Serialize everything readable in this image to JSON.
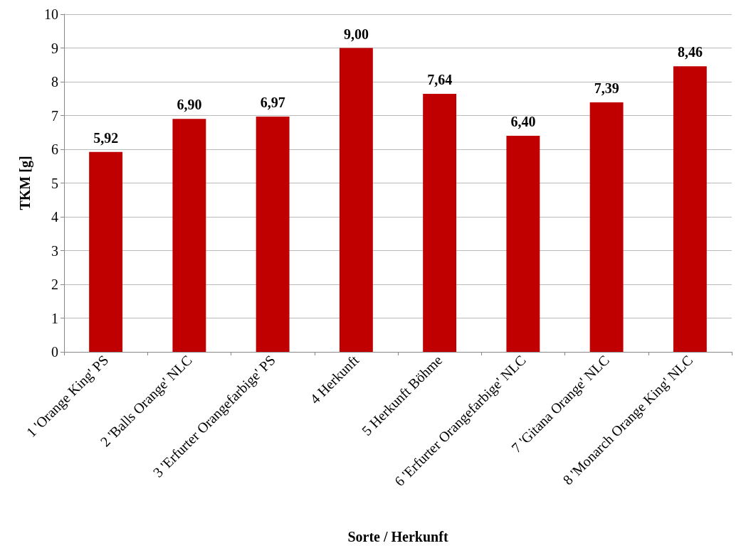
{
  "chart_data": {
    "type": "bar",
    "xlabel": "Sorte / Herkunft",
    "ylabel": "TKM [g]",
    "categories": [
      "1 'Orange King' PS",
      "2 'Balls Orange' NLC",
      "3 'Erfurter Orangefarbige' PS",
      "4 Herkunft",
      "5 Herkunft Böhme",
      "6 'Erfurter Orangefarbige' NLC",
      "7 'Gitana Orange' NLC",
      "8 'Monarch Orange King' NLC"
    ],
    "values": [
      5.92,
      6.9,
      6.97,
      9.0,
      7.64,
      6.4,
      7.39,
      8.46
    ],
    "value_labels": [
      "5,92",
      "6,90",
      "6,97",
      "9,00",
      "7,64",
      "6,40",
      "7,39",
      "8,46"
    ],
    "color": "#c00000",
    "ylim": [
      0,
      10
    ],
    "yticks": [
      0,
      1,
      2,
      3,
      4,
      5,
      6,
      7,
      8,
      9,
      10
    ],
    "grid": "y"
  }
}
